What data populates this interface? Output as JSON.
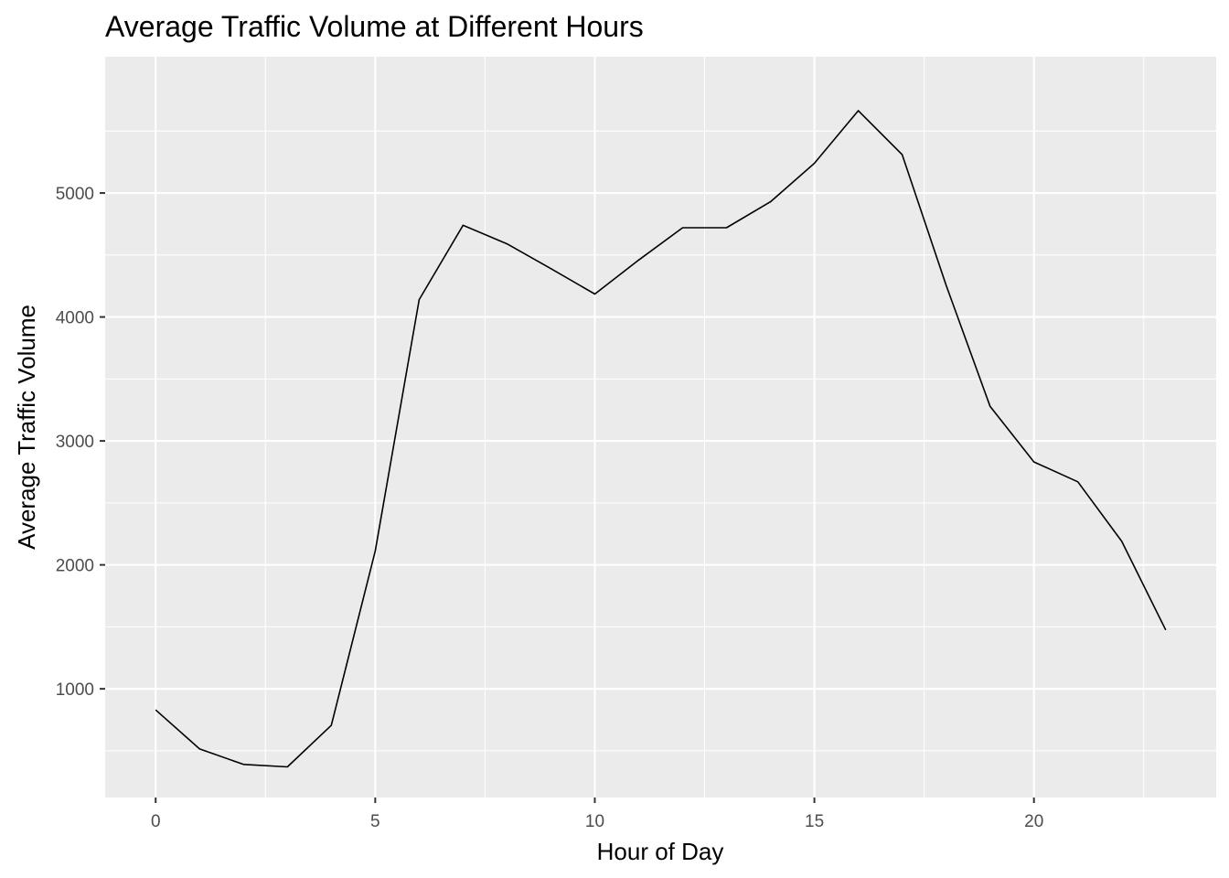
{
  "chart_data": {
    "type": "line",
    "title": "Average Traffic Volume at Different Hours",
    "xlabel": "Hour of Day",
    "ylabel": "Average Traffic Volume",
    "x": [
      0,
      1,
      2,
      3,
      4,
      5,
      6,
      7,
      8,
      9,
      10,
      11,
      12,
      13,
      14,
      15,
      16,
      17,
      18,
      19,
      20,
      21,
      22,
      23
    ],
    "values": [
      830,
      515,
      390,
      370,
      705,
      2110,
      4140,
      4740,
      4590,
      4390,
      4185,
      4460,
      4720,
      4720,
      4930,
      5240,
      5665,
      5310,
      4255,
      3280,
      2830,
      2670,
      2190,
      1475
    ],
    "xlim": [
      -1.15,
      24.15
    ],
    "ylim": [
      123,
      6100
    ],
    "xticks": [
      0,
      5,
      10,
      15,
      20
    ],
    "xtick_labels": [
      "0",
      "5",
      "10",
      "15",
      "20"
    ],
    "yticks": [
      1000,
      2000,
      3000,
      4000,
      5000
    ],
    "ytick_labels": [
      "1000",
      "2000",
      "3000",
      "4000",
      "5000"
    ],
    "grid": true,
    "legend": "none",
    "colors": {
      "panel": "#ebebeb",
      "grid": "#ffffff",
      "line": "#000000"
    }
  }
}
